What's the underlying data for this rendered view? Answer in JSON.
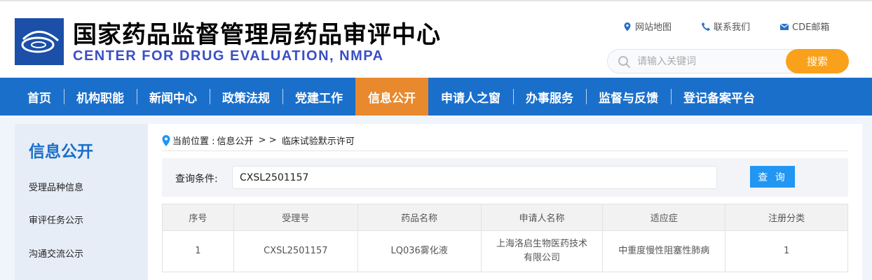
{
  "header": {
    "logo_text": "国家药品监督管理局药品审评中心",
    "title_cn": "国家药品监督管理局药品审评中心",
    "title_en": "CENTER FOR DRUG EVALUATION, NMPA",
    "links": [
      {
        "label": "网站地图",
        "icon": "map-pin-icon"
      },
      {
        "label": "联系我们",
        "icon": "phone-icon"
      },
      {
        "label": "CDE邮箱",
        "icon": "mail-icon"
      }
    ],
    "search_placeholder": "请输入关键词",
    "search_button": "搜索"
  },
  "nav": {
    "items": [
      "首页",
      "机构职能",
      "新闻中心",
      "政策法规",
      "党建工作",
      "信息公开",
      "申请人之窗",
      "办事服务",
      "监督与反馈",
      "登记备案平台"
    ],
    "active": "信息公开"
  },
  "sidebar": {
    "title": "信息公开",
    "items": [
      "受理品种信息",
      "审评任务公示",
      "沟通交流公示"
    ]
  },
  "main": {
    "breadcrumb": {
      "prefix": "当前位置 : ",
      "path": "信息公开",
      "sep": " > > ",
      "current": "临床试验默示许可"
    },
    "query": {
      "label": "查询条件:",
      "value": "CXSL2501157",
      "button": "查 询"
    },
    "table": {
      "headers": [
        "序号",
        "受理号",
        "药品名称",
        "申请人名称",
        "适应症",
        "注册分类"
      ],
      "rows": [
        [
          "1",
          "CXSL2501157",
          "LQ036雾化液",
          "上海洛启生物医药技术有限公司",
          "中重度慢性阻塞性肺病",
          "1"
        ]
      ]
    }
  },
  "colors": {
    "nav": "#1a6fcb",
    "nav_active": "#e8892e",
    "search_button": "#f9a11b",
    "query_button": "#2196f3"
  }
}
